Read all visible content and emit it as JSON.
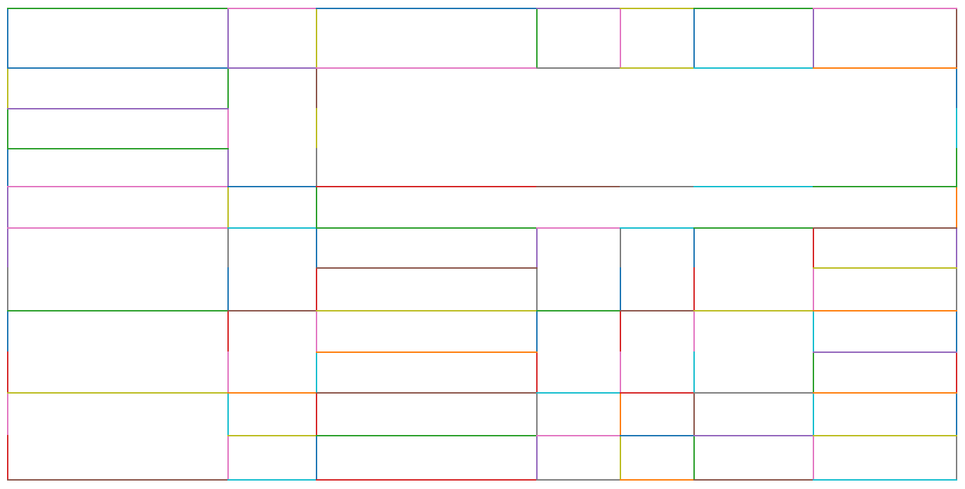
{
  "diagram": {
    "background": "#ffffff",
    "palette": {
      "blue": "#1f77b4",
      "orange": "#ff7f0e",
      "green": "#2ca02c",
      "red": "#d62728",
      "purple": "#9467bd",
      "brown": "#8c564b",
      "pink": "#e377c2",
      "gray": "#7f7f7f",
      "olive": "#bcbd22",
      "cyan": "#17becf"
    }
  }
}
